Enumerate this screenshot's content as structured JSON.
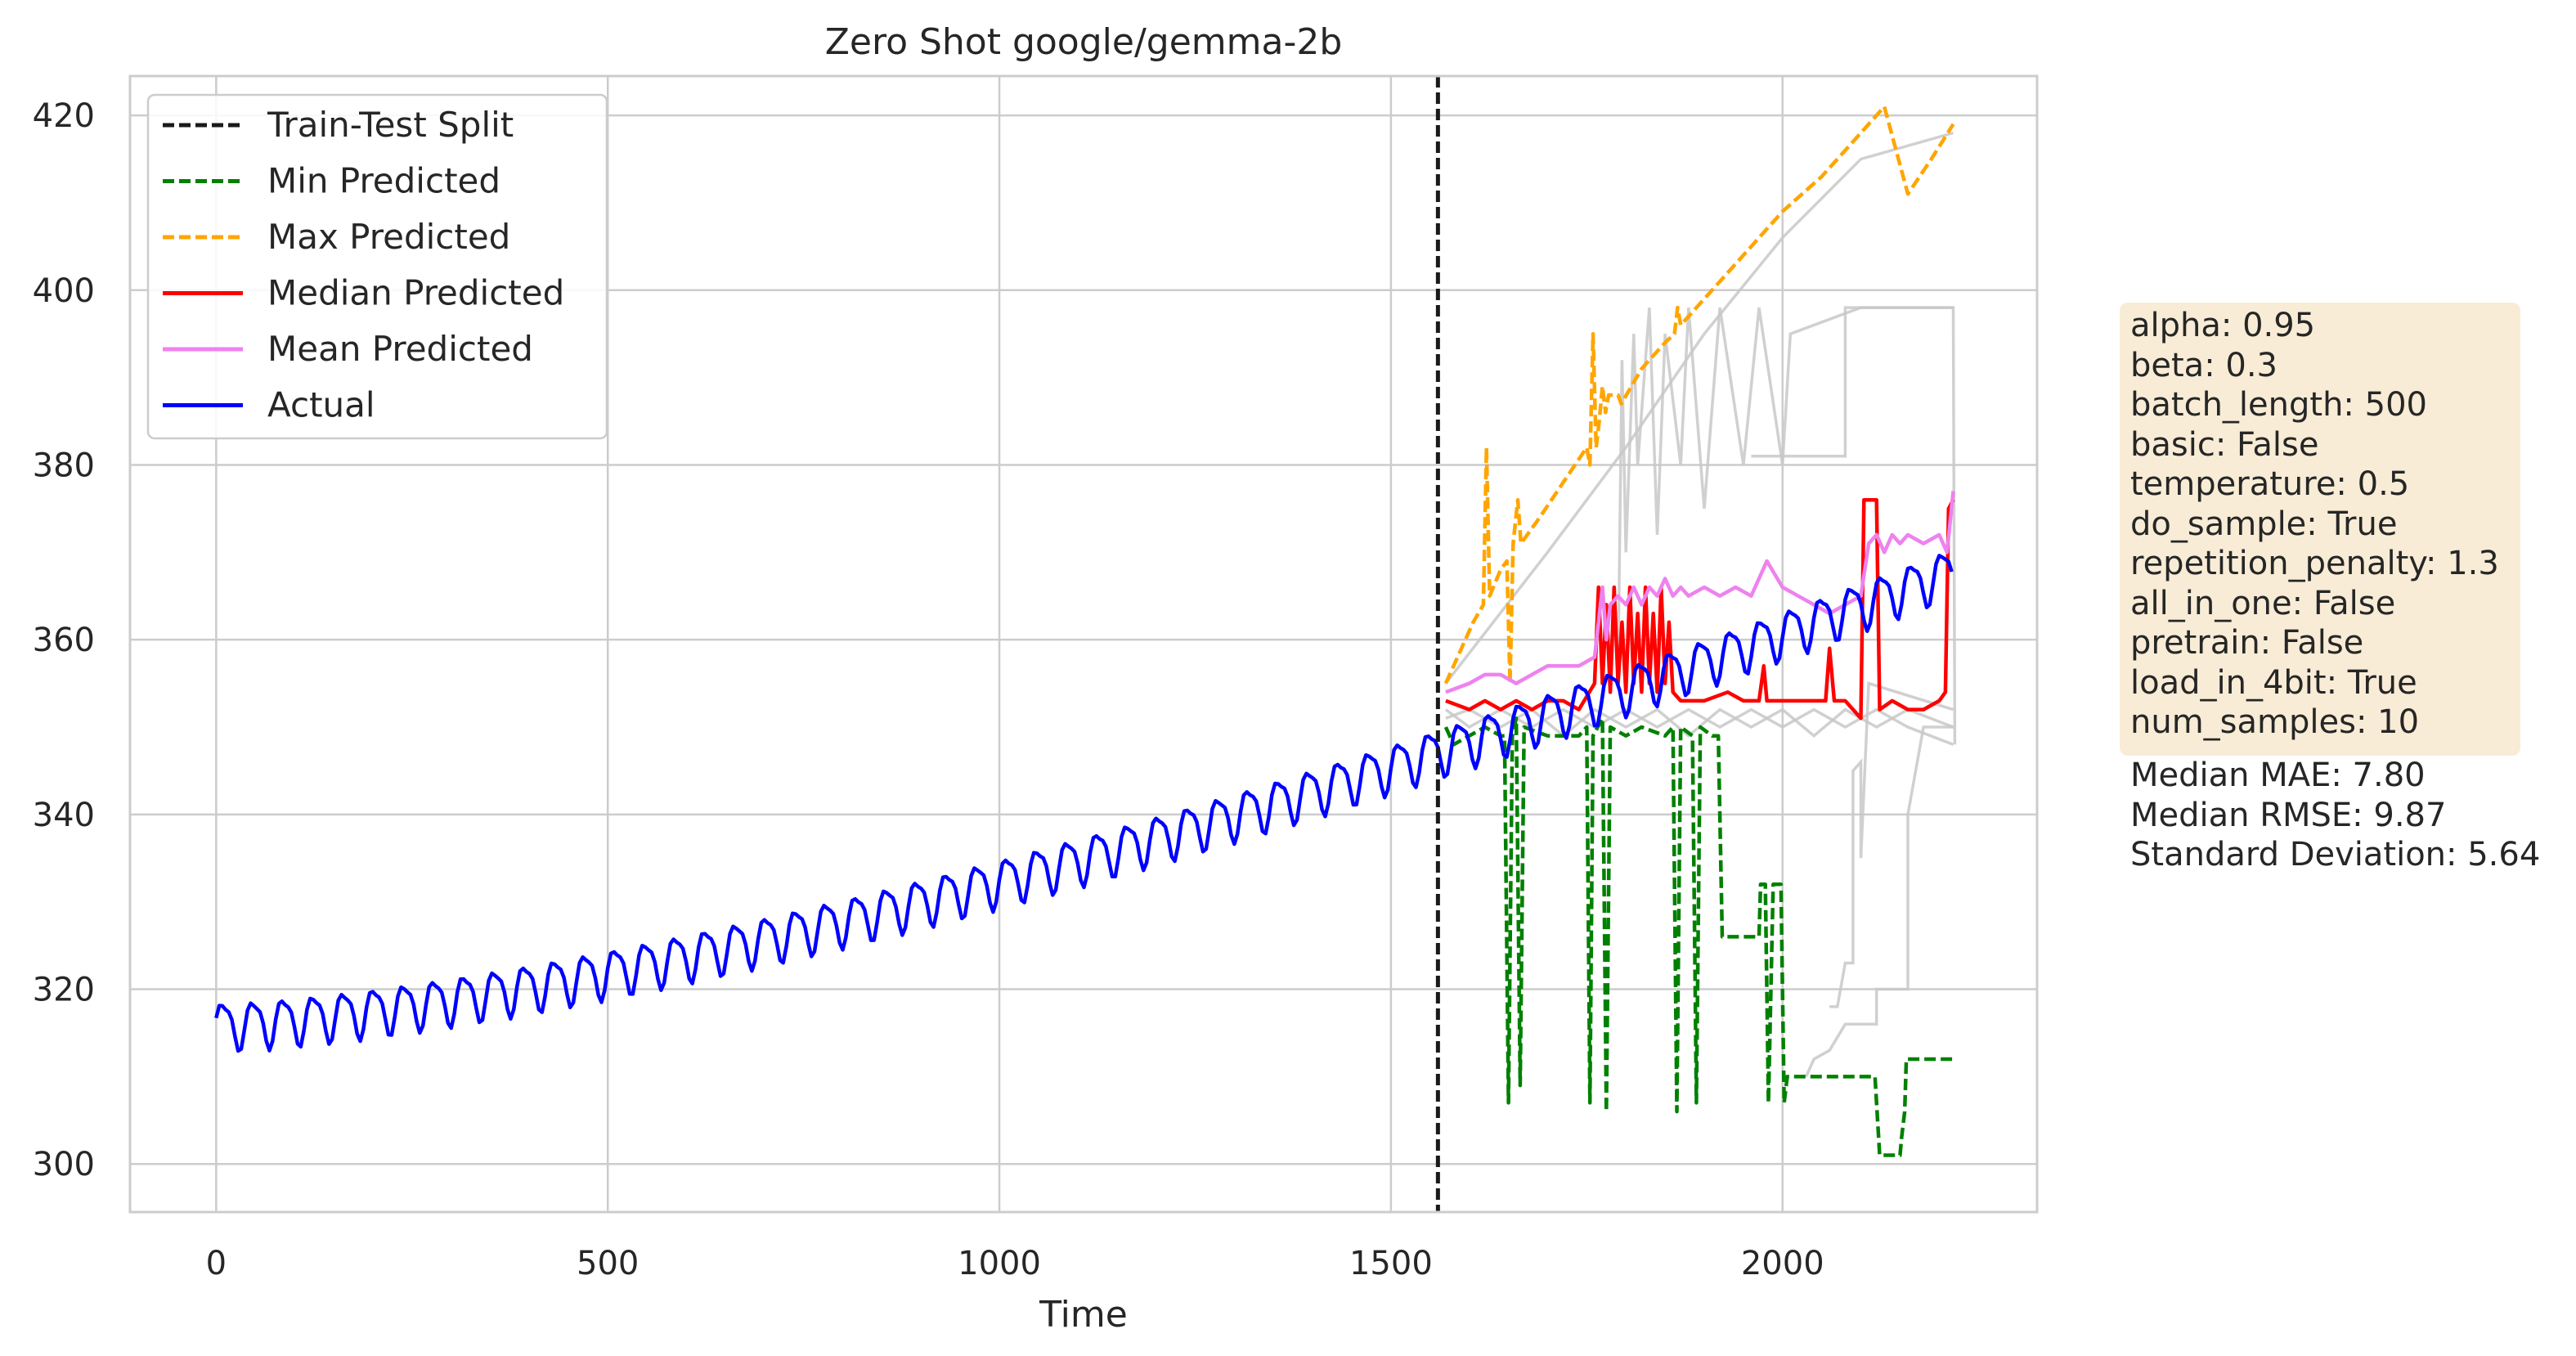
{
  "chart_data": {
    "type": "line",
    "title": "Zero Shot google/gemma-2b",
    "xlabel": "Time",
    "ylabel": "",
    "xlim": [
      -110,
      2325
    ],
    "ylim": [
      294.5,
      424.5
    ],
    "xticks": [
      0,
      500,
      1000,
      1500,
      2000
    ],
    "yticks": [
      300,
      320,
      340,
      360,
      380,
      400,
      420
    ],
    "grid": true,
    "legend_position": "top-left",
    "split_x": 1560,
    "legend": [
      {
        "label": "Train-Test Split",
        "color": "#1a1a1a",
        "dashed": true
      },
      {
        "label": "Min Predicted",
        "color": "#008000",
        "dashed": true
      },
      {
        "label": "Max Predicted",
        "color": "#ffa500",
        "dashed": true
      },
      {
        "label": "Median Predicted",
        "color": "#ff0000",
        "dashed": false
      },
      {
        "label": "Mean Predicted",
        "color": "#ee82ee",
        "dashed": false
      },
      {
        "label": "Actual",
        "color": "#0000ff",
        "dashed": false
      }
    ],
    "series": [
      {
        "name": "Max Predicted",
        "color": "#ffa500",
        "dashed": true,
        "points": [
          [
            1570,
            355
          ],
          [
            1605,
            362
          ],
          [
            1618,
            364
          ],
          [
            1622,
            382
          ],
          [
            1626,
            365
          ],
          [
            1640,
            368
          ],
          [
            1648,
            369
          ],
          [
            1652,
            355
          ],
          [
            1656,
            371
          ],
          [
            1662,
            376
          ],
          [
            1666,
            371
          ],
          [
            1690,
            374
          ],
          [
            1720,
            378
          ],
          [
            1750,
            382
          ],
          [
            1754,
            380
          ],
          [
            1758,
            395
          ],
          [
            1762,
            382
          ],
          [
            1766,
            385
          ],
          [
            1770,
            389
          ],
          [
            1774,
            386
          ],
          [
            1778,
            388
          ],
          [
            1790,
            388
          ],
          [
            1794,
            387
          ],
          [
            1820,
            391
          ],
          [
            1850,
            394
          ],
          [
            1862,
            395
          ],
          [
            1866,
            398
          ],
          [
            1870,
            396
          ],
          [
            1900,
            399
          ],
          [
            1950,
            404
          ],
          [
            2000,
            409
          ],
          [
            2050,
            413
          ],
          [
            2100,
            418
          ],
          [
            2130,
            421
          ],
          [
            2160,
            411
          ],
          [
            2190,
            415
          ],
          [
            2218,
            419
          ]
        ]
      },
      {
        "name": "Min Predicted",
        "color": "#008000",
        "dashed": true,
        "points": [
          [
            1570,
            350
          ],
          [
            1580,
            348
          ],
          [
            1600,
            349
          ],
          [
            1620,
            350
          ],
          [
            1640,
            349
          ],
          [
            1645,
            349
          ],
          [
            1650,
            307
          ],
          [
            1655,
            349
          ],
          [
            1660,
            351
          ],
          [
            1665,
            309
          ],
          [
            1670,
            350
          ],
          [
            1700,
            349
          ],
          [
            1740,
            349
          ],
          [
            1750,
            350
          ],
          [
            1754,
            307
          ],
          [
            1758,
            349
          ],
          [
            1770,
            351
          ],
          [
            1775,
            306
          ],
          [
            1780,
            350
          ],
          [
            1800,
            349
          ],
          [
            1820,
            350
          ],
          [
            1850,
            349
          ],
          [
            1860,
            350
          ],
          [
            1865,
            306
          ],
          [
            1870,
            350
          ],
          [
            1885,
            349
          ],
          [
            1890,
            307
          ],
          [
            1895,
            350
          ],
          [
            1910,
            349
          ],
          [
            1918,
            349
          ],
          [
            1923,
            326
          ],
          [
            1970,
            326
          ],
          [
            1972,
            332
          ],
          [
            1978,
            332
          ],
          [
            1982,
            307
          ],
          [
            1988,
            332
          ],
          [
            1998,
            332
          ],
          [
            2002,
            307
          ],
          [
            2006,
            310
          ],
          [
            2060,
            310
          ],
          [
            2118,
            310
          ],
          [
            2124,
            301
          ],
          [
            2150,
            301
          ],
          [
            2152,
            303
          ],
          [
            2156,
            306
          ],
          [
            2158,
            312
          ],
          [
            2170,
            312
          ],
          [
            2200,
            312
          ],
          [
            2218,
            312
          ]
        ]
      },
      {
        "name": "Median Predicted",
        "color": "#ff0000",
        "dashed": false,
        "points": [
          [
            1570,
            353
          ],
          [
            1600,
            352
          ],
          [
            1620,
            353
          ],
          [
            1640,
            352
          ],
          [
            1660,
            353
          ],
          [
            1680,
            352
          ],
          [
            1700,
            353
          ],
          [
            1720,
            353
          ],
          [
            1740,
            352
          ],
          [
            1760,
            355
          ],
          [
            1765,
            366
          ],
          [
            1770,
            355
          ],
          [
            1775,
            364
          ],
          [
            1780,
            354
          ],
          [
            1785,
            366
          ],
          [
            1790,
            355
          ],
          [
            1795,
            362
          ],
          [
            1800,
            354
          ],
          [
            1805,
            366
          ],
          [
            1810,
            355
          ],
          [
            1815,
            363
          ],
          [
            1820,
            354
          ],
          [
            1825,
            366
          ],
          [
            1830,
            355
          ],
          [
            1835,
            363
          ],
          [
            1840,
            354
          ],
          [
            1845,
            366
          ],
          [
            1850,
            355
          ],
          [
            1855,
            362
          ],
          [
            1860,
            354
          ],
          [
            1870,
            353
          ],
          [
            1900,
            353
          ],
          [
            1930,
            354
          ],
          [
            1950,
            353
          ],
          [
            1970,
            353
          ],
          [
            1976,
            357
          ],
          [
            1980,
            353
          ],
          [
            2000,
            353
          ],
          [
            2030,
            353
          ],
          [
            2055,
            353
          ],
          [
            2060,
            359
          ],
          [
            2066,
            353
          ],
          [
            2080,
            353
          ],
          [
            2100,
            351
          ],
          [
            2104,
            376
          ],
          [
            2120,
            376
          ],
          [
            2124,
            352
          ],
          [
            2140,
            353
          ],
          [
            2160,
            352
          ],
          [
            2180,
            352
          ],
          [
            2200,
            353
          ],
          [
            2208,
            354
          ],
          [
            2212,
            375
          ],
          [
            2218,
            376
          ]
        ]
      },
      {
        "name": "Mean Predicted",
        "color": "#ee82ee",
        "dashed": false,
        "points": [
          [
            1570,
            354
          ],
          [
            1600,
            355
          ],
          [
            1620,
            356
          ],
          [
            1640,
            356
          ],
          [
            1660,
            355
          ],
          [
            1680,
            356
          ],
          [
            1700,
            357
          ],
          [
            1720,
            357
          ],
          [
            1740,
            357
          ],
          [
            1760,
            358
          ],
          [
            1770,
            366
          ],
          [
            1775,
            360
          ],
          [
            1780,
            364
          ],
          [
            1790,
            365
          ],
          [
            1800,
            364
          ],
          [
            1810,
            366
          ],
          [
            1820,
            364
          ],
          [
            1830,
            366
          ],
          [
            1840,
            365
          ],
          [
            1850,
            367
          ],
          [
            1860,
            365
          ],
          [
            1870,
            366
          ],
          [
            1880,
            365
          ],
          [
            1900,
            366
          ],
          [
            1920,
            365
          ],
          [
            1940,
            366
          ],
          [
            1960,
            365
          ],
          [
            1980,
            369
          ],
          [
            2000,
            366
          ],
          [
            2020,
            365
          ],
          [
            2040,
            364
          ],
          [
            2060,
            363
          ],
          [
            2080,
            364
          ],
          [
            2100,
            365
          ],
          [
            2110,
            371
          ],
          [
            2120,
            372
          ],
          [
            2130,
            370
          ],
          [
            2140,
            372
          ],
          [
            2150,
            371
          ],
          [
            2160,
            372
          ],
          [
            2180,
            371
          ],
          [
            2200,
            372
          ],
          [
            2210,
            370
          ],
          [
            2218,
            377
          ]
        ]
      }
    ],
    "actual": {
      "name": "Actual",
      "color": "#0000ff",
      "dashed": false,
      "start": 0,
      "end": 2218,
      "base_start": 316.0,
      "base_end": 368.0,
      "period": 38.5,
      "amplitude": 2.6
    }
  },
  "stats_box": {
    "lines": [
      "alpha: 0.95",
      "beta: 0.3",
      "batch_length: 500",
      "basic: False",
      "temperature: 0.5",
      "do_sample: True",
      "repetition_penalty: 1.3",
      "all_in_one: False",
      "pretrain: False",
      "load_in_4bit: True",
      "num_samples: 10"
    ],
    "metrics": [
      "Median MAE: 7.80",
      "Median RMSE: 9.87",
      "Standard Deviation: 5.64"
    ]
  }
}
